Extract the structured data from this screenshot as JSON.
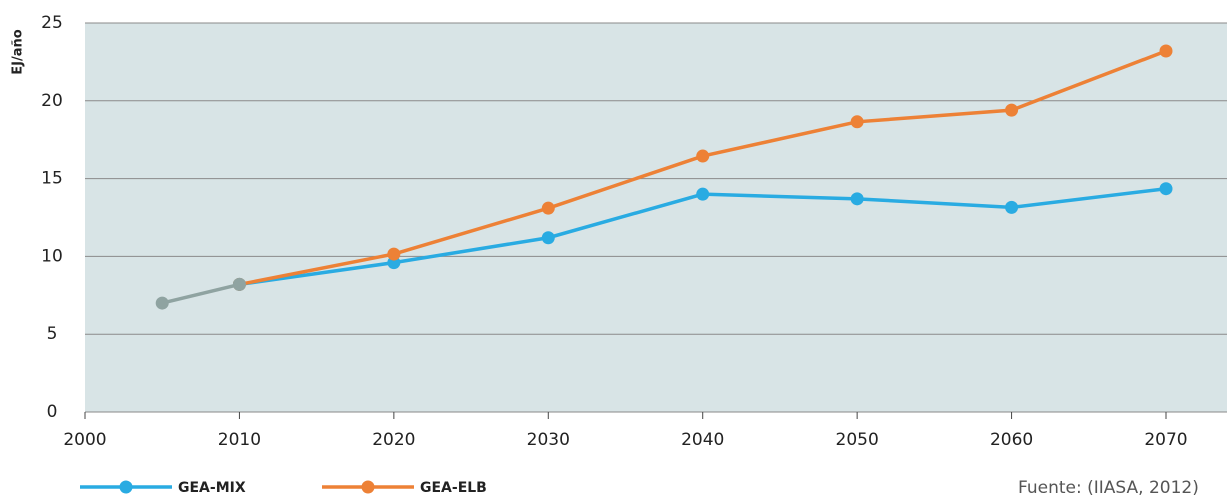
{
  "chart_data": {
    "type": "line",
    "y_label": "EJ/año",
    "source": "Fuente: (IIASA, 2012)",
    "xlim": [
      2000,
      2074
    ],
    "xticks": [
      2000,
      2010,
      2020,
      2030,
      2040,
      2050,
      2060,
      2070
    ],
    "ylim": [
      0,
      25
    ],
    "yticks": [
      0,
      5,
      10,
      15,
      20,
      25
    ],
    "grid": true,
    "legend": "bottom",
    "background": "#d8e4e6",
    "history": {
      "color": "#8fa3a1",
      "x": [
        2005,
        2010
      ],
      "values": [
        7.0,
        8.2
      ]
    },
    "series": [
      {
        "name": "GEA-MIX",
        "color": "#29abe2",
        "x": [
          2010,
          2020,
          2030,
          2040,
          2050,
          2060,
          2070
        ],
        "values": [
          8.2,
          9.6,
          11.2,
          14.0,
          13.7,
          13.15,
          14.35
        ]
      },
      {
        "name": "GEA-ELB",
        "color": "#ed8136",
        "x": [
          2010,
          2020,
          2030,
          2040,
          2050,
          2060,
          2070
        ],
        "values": [
          8.2,
          10.15,
          13.1,
          16.45,
          18.65,
          19.4,
          23.2
        ]
      }
    ]
  }
}
